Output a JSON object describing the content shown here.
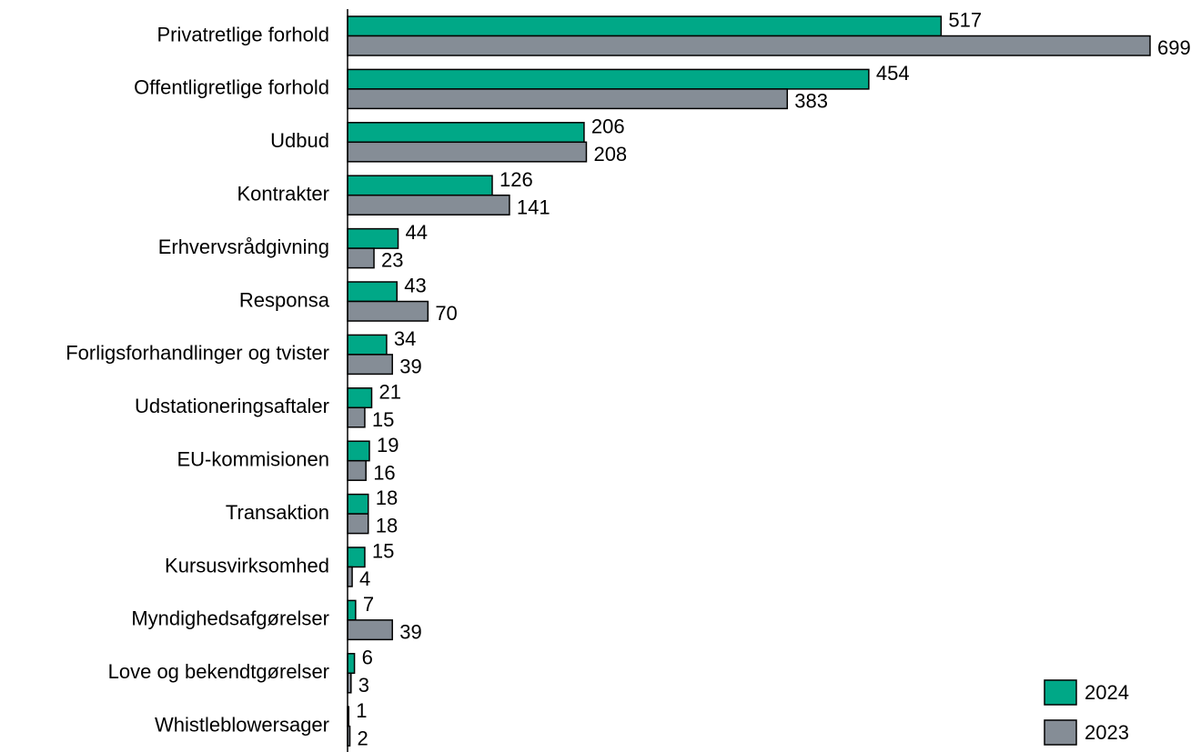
{
  "chart_data": {
    "type": "bar",
    "orientation": "horizontal",
    "categories": [
      "Privatretlige forhold",
      "Offentligretlige forhold",
      "Udbud",
      "Kontrakter",
      "Erhvervsrådgivning",
      "Responsa",
      "Forligsforhandlinger og tvister",
      "Udstationeringsaftaler",
      "EU-kommisionen",
      "Transaktion",
      "Kursusvirksomhed",
      "Myndighedsafgørelser",
      "Love og bekendtgørelser",
      "Whistleblowersager"
    ],
    "series": [
      {
        "name": "2024",
        "color": "#00a887",
        "values": [
          517,
          454,
          206,
          126,
          44,
          43,
          34,
          21,
          19,
          18,
          15,
          7,
          6,
          1
        ]
      },
      {
        "name": "2023",
        "color": "#858d96",
        "values": [
          699,
          383,
          208,
          141,
          23,
          70,
          39,
          15,
          16,
          18,
          4,
          39,
          3,
          2
        ]
      }
    ],
    "legend": "lower right"
  }
}
